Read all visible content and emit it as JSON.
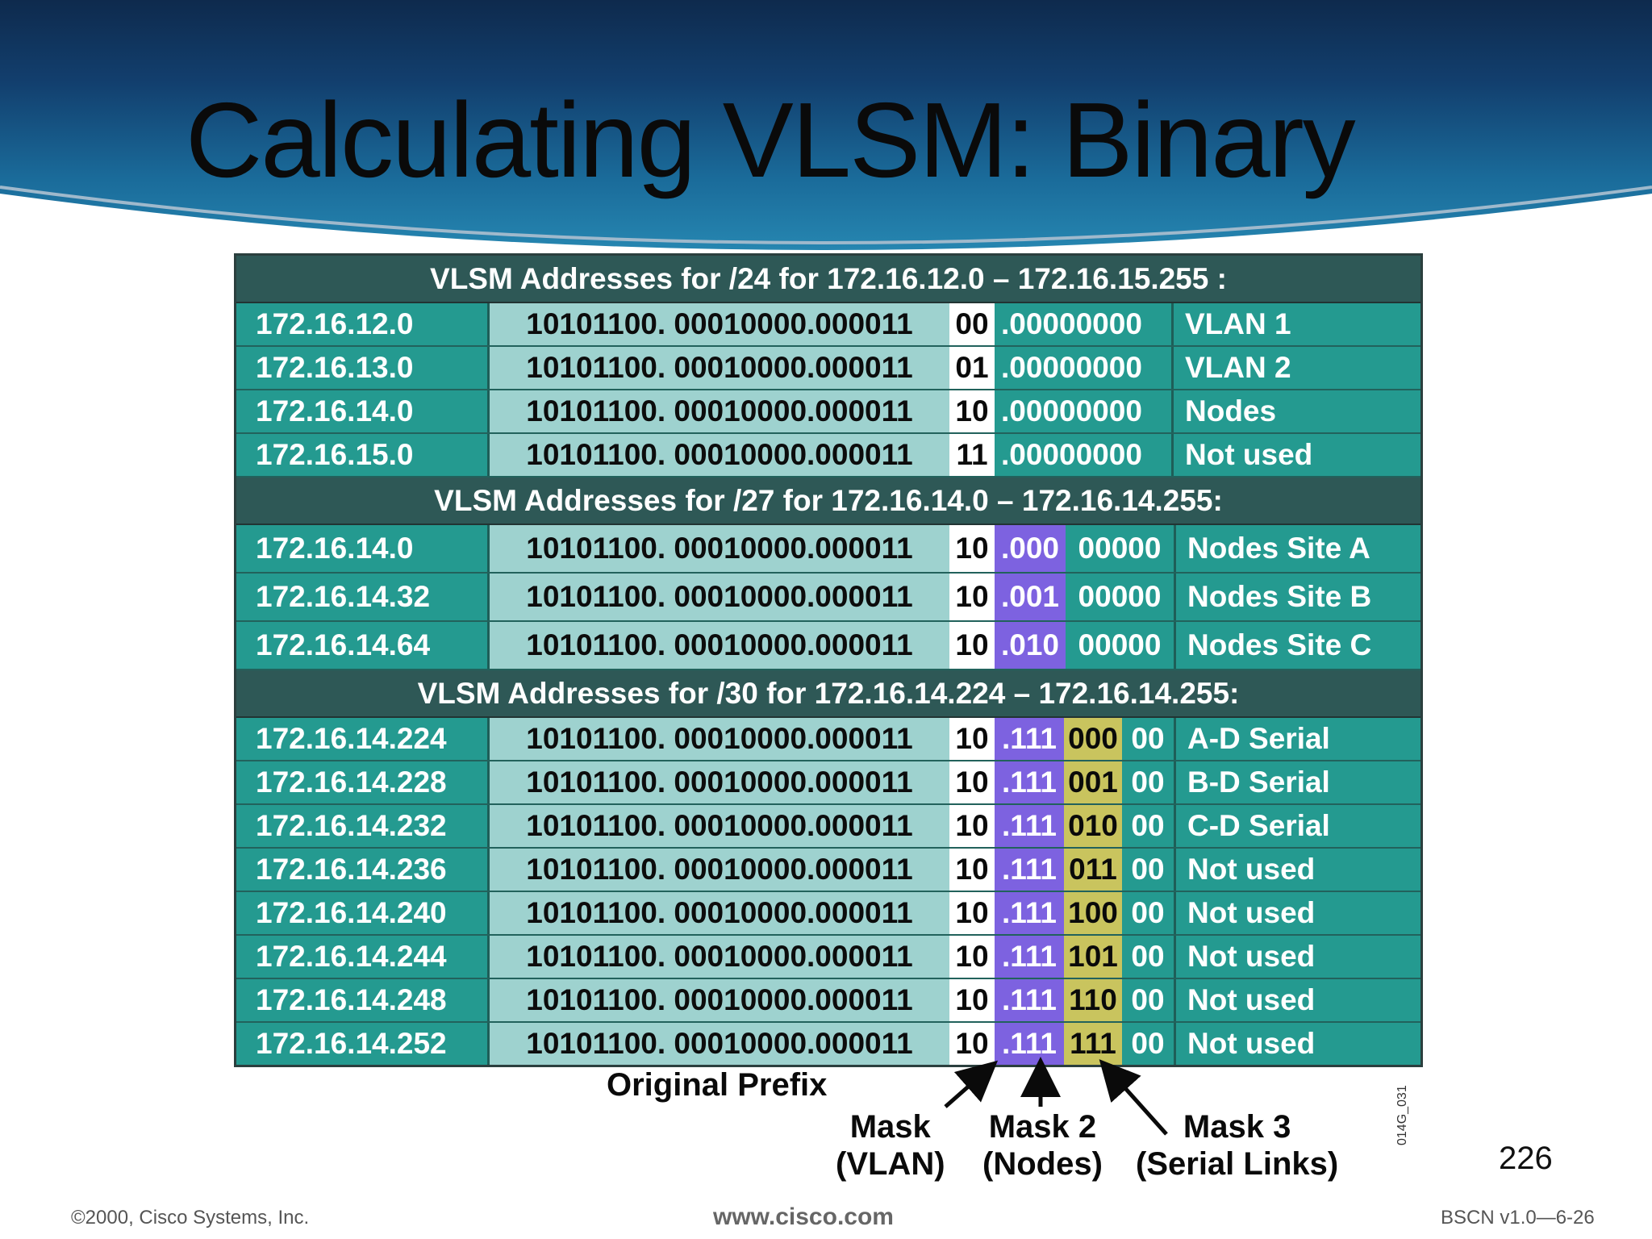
{
  "title": "Calculating VLSM: Binary",
  "sections": [
    {
      "heading": "VLSM Addresses for /24 for 172.16.12.0 – 172.16.15.255 :",
      "rows": [
        {
          "ip": "172.16.12.0",
          "binary": "10101100. 00010000.000011",
          "vlan": "00",
          "rest": ".00000000",
          "desc": "VLAN 1"
        },
        {
          "ip": "172.16.13.0",
          "binary": "10101100. 00010000.000011",
          "vlan": "01",
          "rest": ".00000000",
          "desc": "VLAN 2"
        },
        {
          "ip": "172.16.14.0",
          "binary": "10101100. 00010000.000011",
          "vlan": "10",
          "rest": ".00000000",
          "desc": "Nodes"
        },
        {
          "ip": "172.16.15.0",
          "binary": "10101100. 00010000.000011",
          "vlan": "11",
          "rest": ".00000000",
          "desc": "Not used"
        }
      ]
    },
    {
      "heading": "VLSM Addresses for /27 for 172.16.14.0 – 172.16.14.255:",
      "rows": [
        {
          "ip": "172.16.14.0",
          "binary": "10101100. 00010000.000011",
          "vlan": "10",
          "mask2": ".000",
          "rest": "00000",
          "desc": "Nodes Site A"
        },
        {
          "ip": "172.16.14.32",
          "binary": "10101100. 00010000.000011",
          "vlan": "10",
          "mask2": ".001",
          "rest": "00000",
          "desc": "Nodes Site B"
        },
        {
          "ip": "172.16.14.64",
          "binary": "10101100. 00010000.000011",
          "vlan": "10",
          "mask2": ".010",
          "rest": "00000",
          "desc": "Nodes Site C"
        }
      ]
    },
    {
      "heading": "VLSM Addresses for /30 for 172.16.14.224 – 172.16.14.255:",
      "rows": [
        {
          "ip": "172.16.14.224",
          "binary": "10101100. 00010000.000011",
          "vlan": "10",
          "mask2": ".111",
          "mask3": "000",
          "rest": "00",
          "desc": "A-D Serial"
        },
        {
          "ip": "172.16.14.228",
          "binary": "10101100. 00010000.000011",
          "vlan": "10",
          "mask2": ".111",
          "mask3": "001",
          "rest": "00",
          "desc": "B-D Serial"
        },
        {
          "ip": "172.16.14.232",
          "binary": "10101100. 00010000.000011",
          "vlan": "10",
          "mask2": ".111",
          "mask3": "010",
          "rest": "00",
          "desc": "C-D Serial"
        },
        {
          "ip": "172.16.14.236",
          "binary": "10101100. 00010000.000011",
          "vlan": "10",
          "mask2": ".111",
          "mask3": "011",
          "rest": "00",
          "desc": "Not used"
        },
        {
          "ip": "172.16.14.240",
          "binary": "10101100. 00010000.000011",
          "vlan": "10",
          "mask2": ".111",
          "mask3": "100",
          "rest": "00",
          "desc": "Not used"
        },
        {
          "ip": "172.16.14.244",
          "binary": "10101100. 00010000.000011",
          "vlan": "10",
          "mask2": ".111",
          "mask3": "101",
          "rest": "00",
          "desc": "Not used"
        },
        {
          "ip": "172.16.14.248",
          "binary": "10101100. 00010000.000011",
          "vlan": "10",
          "mask2": ".111",
          "mask3": "110",
          "rest": "00",
          "desc": "Not used"
        },
        {
          "ip": "172.16.14.252",
          "binary": "10101100. 00010000.000011",
          "vlan": "10",
          "mask2": ".111",
          "mask3": "111",
          "rest": "00",
          "desc": "Not used"
        }
      ]
    }
  ],
  "labels": {
    "original_prefix": "Original Prefix",
    "mask_vlan_1": "Mask",
    "mask_vlan_2": "(VLAN)",
    "mask2_1": "Mask 2",
    "mask2_2": "(Nodes)",
    "mask3_1": "Mask 3",
    "mask3_2": "(Serial Links)"
  },
  "page_number": "226",
  "slide_code": "014G_031",
  "footer": {
    "copyright": "©2000, Cisco Systems, Inc.",
    "url": "www.cisco.com",
    "course": "BSCN v1.0—6-26"
  },
  "colors": {
    "teal": "#249a90",
    "light_teal": "#9ed2cf",
    "header": "#2e5856",
    "purple": "#7d62e0",
    "olive": "#c9c45e"
  }
}
